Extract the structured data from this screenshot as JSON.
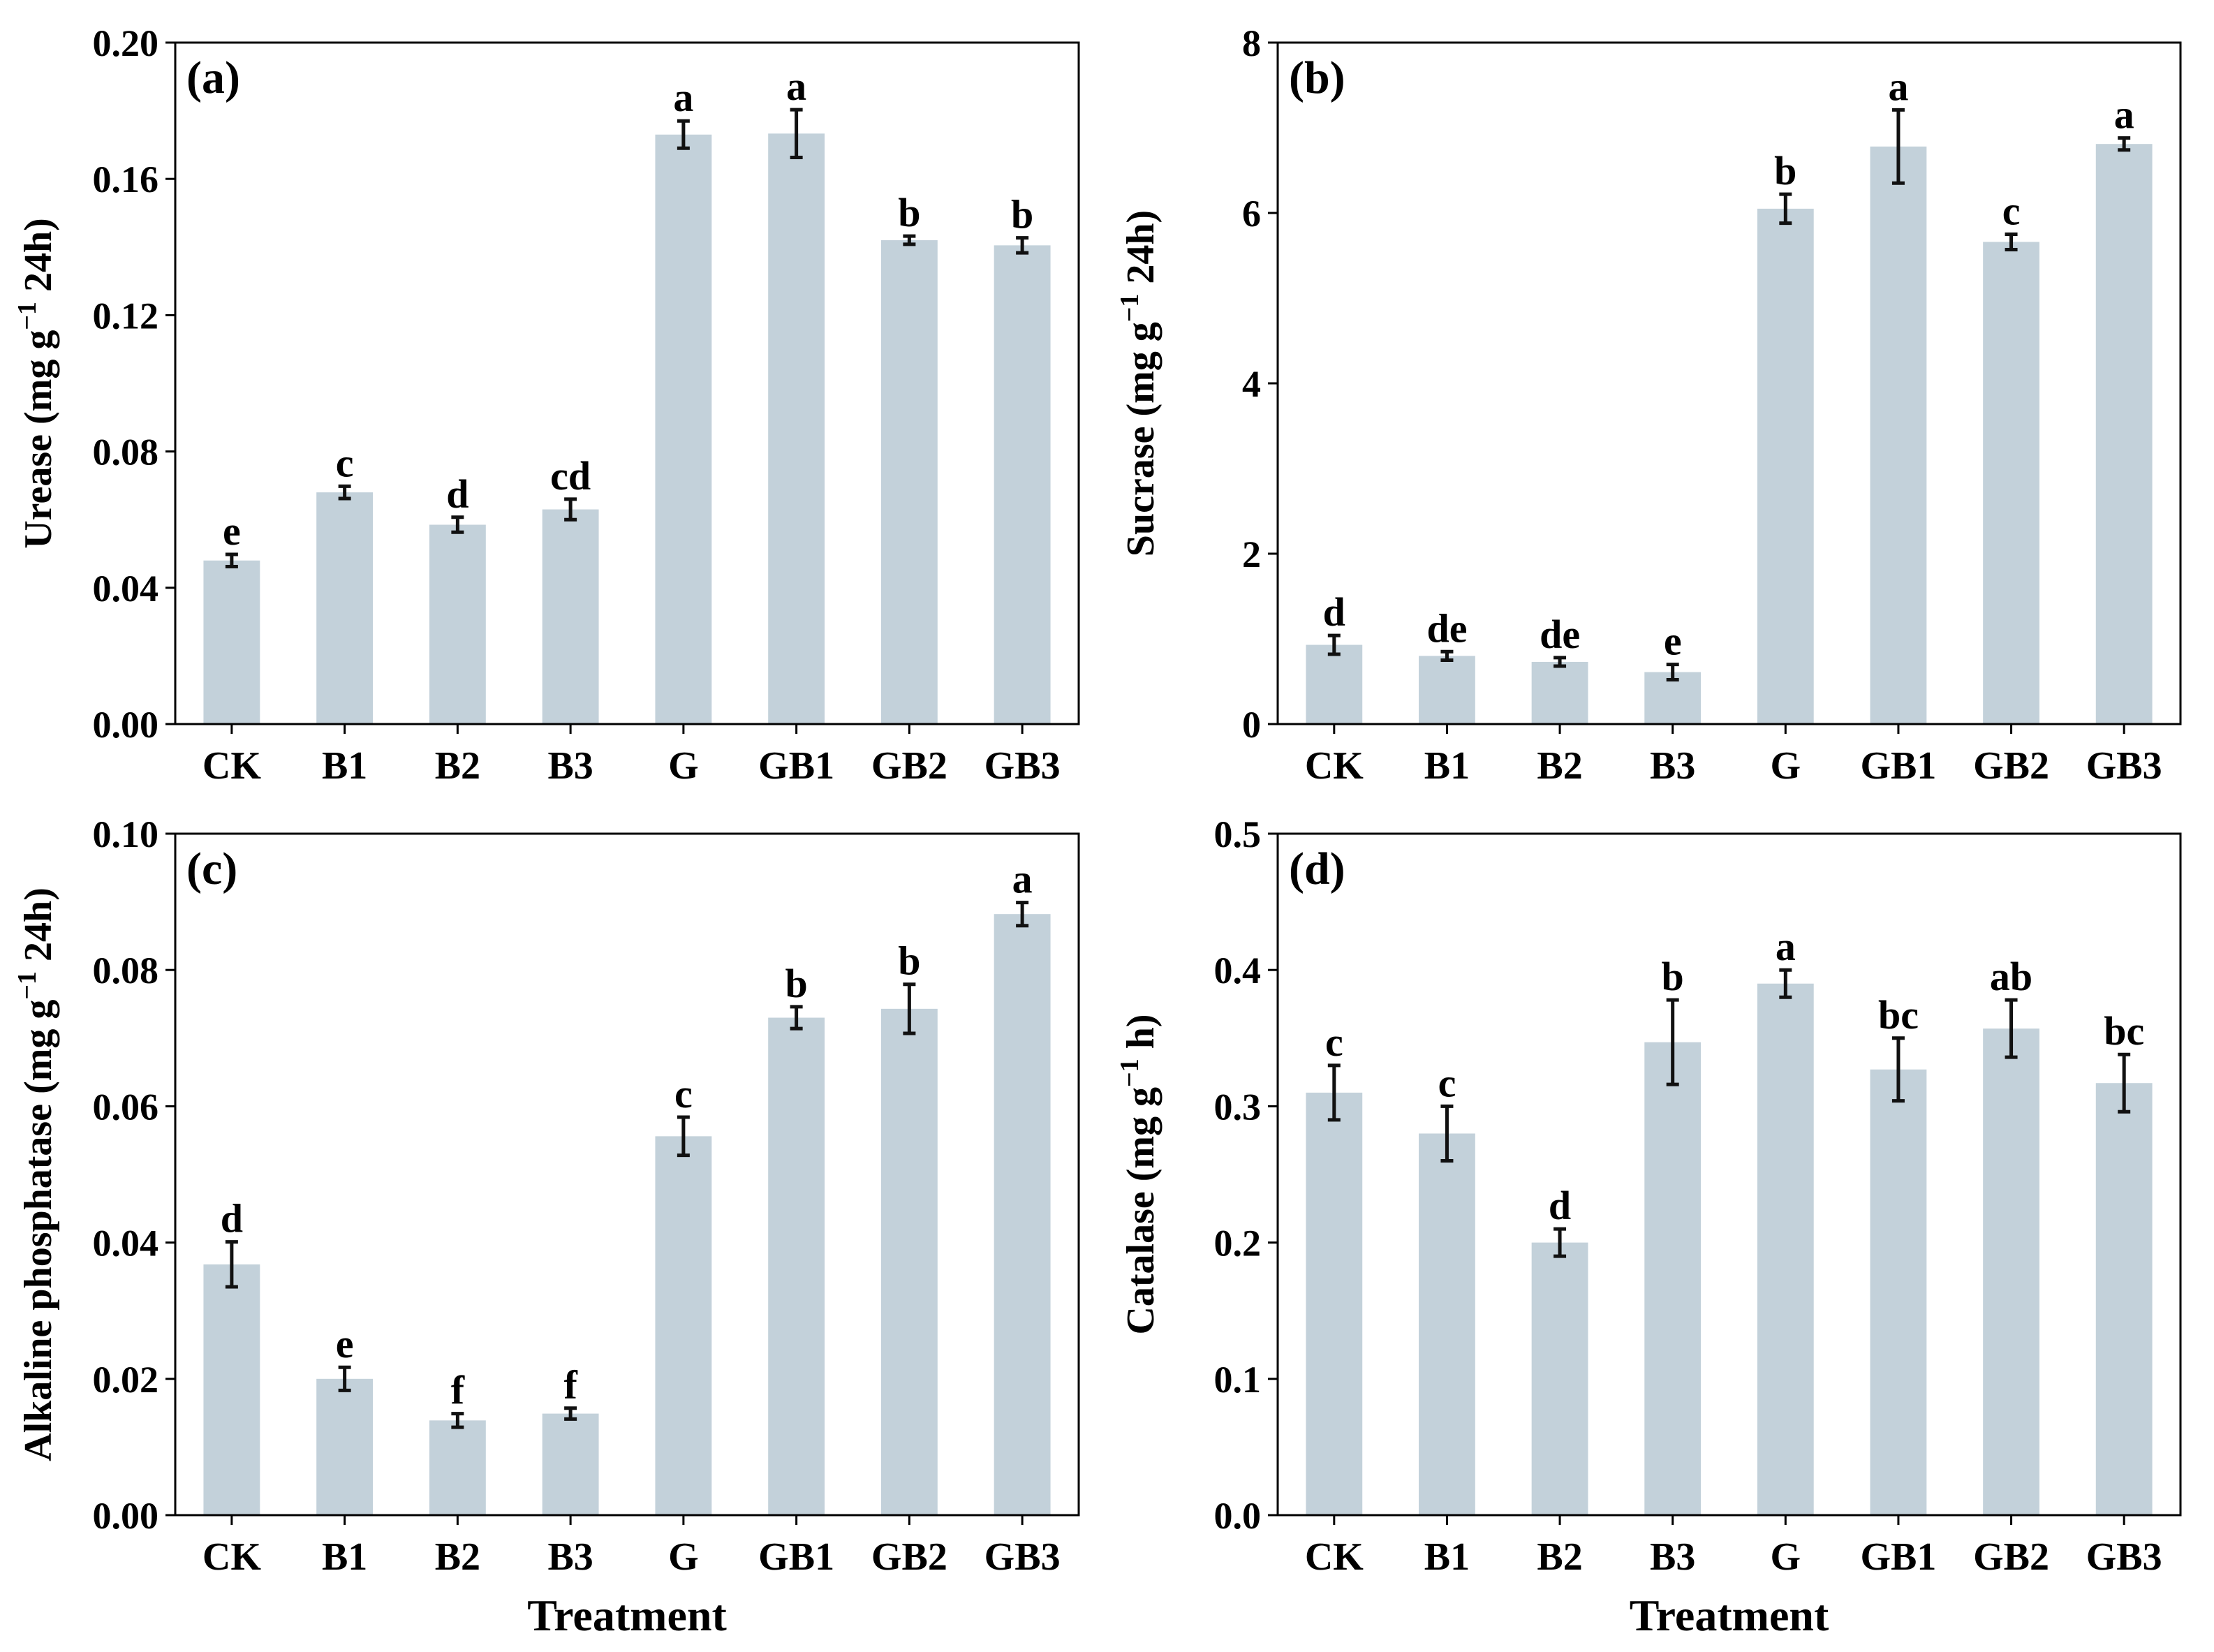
{
  "figure": {
    "bar_color": "#c3d1da",
    "error_color": "#111111",
    "text_color": "#000000"
  },
  "chart_data": [
    {
      "panel": "(a)",
      "type": "bar",
      "title": "",
      "xlabel": "",
      "ylabel": "Urease (mg g",
      "ylabel_sup": "−1",
      "ylabel_suffix": " 24h)",
      "ylim": [
        0,
        0.2
      ],
      "yticks": [
        0,
        0.04,
        0.08,
        0.12,
        0.16,
        0.2
      ],
      "ytick_labels": [
        "0.00",
        "0.04",
        "0.08",
        "0.12",
        "0.16",
        "0.20"
      ],
      "categories": [
        "CK",
        "B1",
        "B2",
        "B3",
        "G",
        "GB1",
        "GB2",
        "GB3"
      ],
      "values": [
        0.048,
        0.068,
        0.0585,
        0.063,
        0.173,
        0.1733,
        0.142,
        0.1405
      ],
      "errors": [
        0.0018,
        0.0018,
        0.0022,
        0.003,
        0.004,
        0.007,
        0.0012,
        0.0022
      ],
      "letters": [
        "e",
        "c",
        "d",
        "cd",
        "a",
        "a",
        "b",
        "b"
      ]
    },
    {
      "panel": "(b)",
      "type": "bar",
      "title": "",
      "xlabel": "",
      "ylabel": "Sucrase (mg g",
      "ylabel_sup": "−1",
      "ylabel_suffix": " 24h)",
      "ylim": [
        0,
        8
      ],
      "yticks": [
        0,
        2,
        4,
        6,
        8
      ],
      "ytick_labels": [
        "0",
        "2",
        "4",
        "6",
        "8"
      ],
      "categories": [
        "CK",
        "B1",
        "B2",
        "B3",
        "G",
        "GB1",
        "GB2",
        "GB3"
      ],
      "values": [
        0.93,
        0.8,
        0.73,
        0.61,
        6.05,
        6.78,
        5.66,
        6.81
      ],
      "errors": [
        0.11,
        0.05,
        0.05,
        0.09,
        0.17,
        0.43,
        0.09,
        0.07
      ],
      "letters": [
        "d",
        "de",
        "de",
        "e",
        "b",
        "a",
        "c",
        "a"
      ]
    },
    {
      "panel": "(c)",
      "type": "bar",
      "title": "",
      "xlabel": "Treatment",
      "ylabel": "Alkaline phosphatase (mg g",
      "ylabel_sup": "−1",
      "ylabel_suffix": " 24h)",
      "ylim": [
        0,
        0.1
      ],
      "yticks": [
        0,
        0.02,
        0.04,
        0.06,
        0.08,
        0.1
      ],
      "ytick_labels": [
        "0.00",
        "0.02",
        "0.04",
        "0.06",
        "0.08",
        "0.10"
      ],
      "categories": [
        "CK",
        "B1",
        "B2",
        "B3",
        "G",
        "GB1",
        "GB2",
        "GB3"
      ],
      "values": [
        0.0368,
        0.02,
        0.0139,
        0.0149,
        0.0556,
        0.073,
        0.0743,
        0.0882
      ],
      "errors": [
        0.0033,
        0.0017,
        0.001,
        0.0008,
        0.0028,
        0.0016,
        0.0036,
        0.0017
      ],
      "letters": [
        "d",
        "e",
        "f",
        "f",
        "c",
        "b",
        "b",
        "a"
      ]
    },
    {
      "panel": "(d)",
      "type": "bar",
      "title": "",
      "xlabel": "Treatment",
      "ylabel": "Catalase (mg g",
      "ylabel_sup": "−1",
      "ylabel_suffix": " h)",
      "ylim": [
        0,
        0.5
      ],
      "yticks": [
        0,
        0.1,
        0.2,
        0.3,
        0.4,
        0.5
      ],
      "ytick_labels": [
        "0.0",
        "0.1",
        "0.2",
        "0.3",
        "0.4",
        "0.5"
      ],
      "categories": [
        "CK",
        "B1",
        "B2",
        "B3",
        "G",
        "GB1",
        "GB2",
        "GB3"
      ],
      "values": [
        0.31,
        0.28,
        0.2,
        0.347,
        0.39,
        0.327,
        0.357,
        0.317
      ],
      "errors": [
        0.02,
        0.02,
        0.01,
        0.031,
        0.01,
        0.023,
        0.021,
        0.021
      ],
      "letters": [
        "c",
        "c",
        "d",
        "b",
        "a",
        "bc",
        "ab",
        "bc"
      ]
    }
  ]
}
